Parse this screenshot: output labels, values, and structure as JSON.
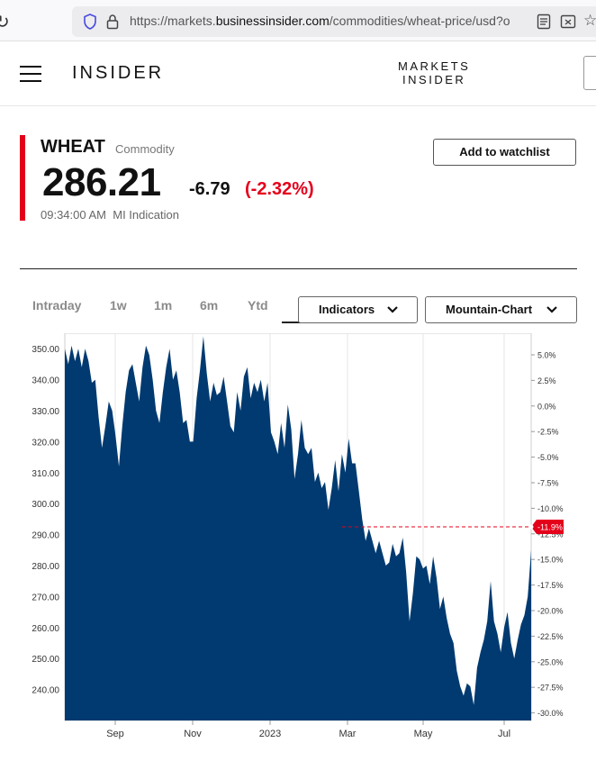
{
  "browser": {
    "url_prefix": "https://markets.",
    "url_domain": "businessinsider.com",
    "url_path": "/commodities/wheat-price/usd?o"
  },
  "header": {
    "logo": "INSIDER",
    "markets_line1": "MARKETS",
    "markets_line2": "INSIDER"
  },
  "quote": {
    "name": "WHEAT",
    "type": "Commodity",
    "price": "286.21",
    "change": "-6.79",
    "change_pct": "(-2.32%)",
    "time": "09:34:00 AM",
    "source": "MI Indication",
    "watchlist_label": "Add to watchlist",
    "accent_color": "#e4001b"
  },
  "tabs": {
    "items": [
      "Intraday",
      "1w",
      "1m",
      "6m",
      "Ytd"
    ],
    "indicators_label": "Indicators",
    "chart_type_label": "Mountain-Chart"
  },
  "chart_data": {
    "type": "area",
    "color": "#003a70",
    "x_ticks": [
      "Sep",
      "Nov",
      "2023",
      "Mar",
      "May",
      "Jul"
    ],
    "y_ticks_left": [
      "350.00",
      "340.00",
      "330.00",
      "320.00",
      "310.00",
      "300.00",
      "290.00",
      "280.00",
      "270.00",
      "260.00",
      "250.00",
      "240.00"
    ],
    "y_ticks_right": [
      "5.0%",
      "2.5%",
      "0.0%",
      "-2.5%",
      "-5.0%",
      "-7.5%",
      "-10.0%",
      "-12.5%",
      "-15.0%",
      "-17.5%",
      "-20.0%",
      "-22.5%",
      "-25.0%",
      "-27.5%",
      "-30.0%"
    ],
    "ylim": [
      230,
      355
    ],
    "current_label": "-11.9%",
    "current_value": 292.5,
    "values": [
      350,
      345,
      351,
      346,
      350,
      344,
      350,
      346,
      339,
      340,
      328,
      318,
      325,
      333,
      330,
      322,
      312,
      325,
      336,
      343,
      345,
      339,
      333,
      344,
      351,
      348,
      340,
      330,
      326,
      336,
      344,
      350,
      340,
      343,
      336,
      326,
      327,
      320,
      320,
      334,
      343,
      354,
      342,
      333,
      339,
      335,
      336,
      341,
      333,
      325,
      323,
      336,
      330,
      341,
      344,
      334,
      339,
      336,
      340,
      333,
      339,
      323,
      320,
      316,
      326,
      318,
      332,
      324,
      308,
      316,
      327,
      318,
      316,
      318,
      307,
      310,
      305,
      307,
      298,
      305,
      314,
      304,
      316,
      310,
      321,
      313,
      313,
      304,
      295,
      288,
      292,
      288,
      284,
      288,
      284,
      280,
      281,
      287,
      283,
      284,
      289,
      278,
      262,
      271,
      283,
      282,
      279,
      280,
      274,
      283,
      276,
      266,
      270,
      263,
      258,
      255,
      246,
      241,
      238,
      242,
      241,
      235,
      247,
      252,
      256,
      262,
      275,
      262,
      258,
      252,
      260,
      265,
      255,
      250,
      256,
      261,
      264,
      270,
      285
    ]
  }
}
